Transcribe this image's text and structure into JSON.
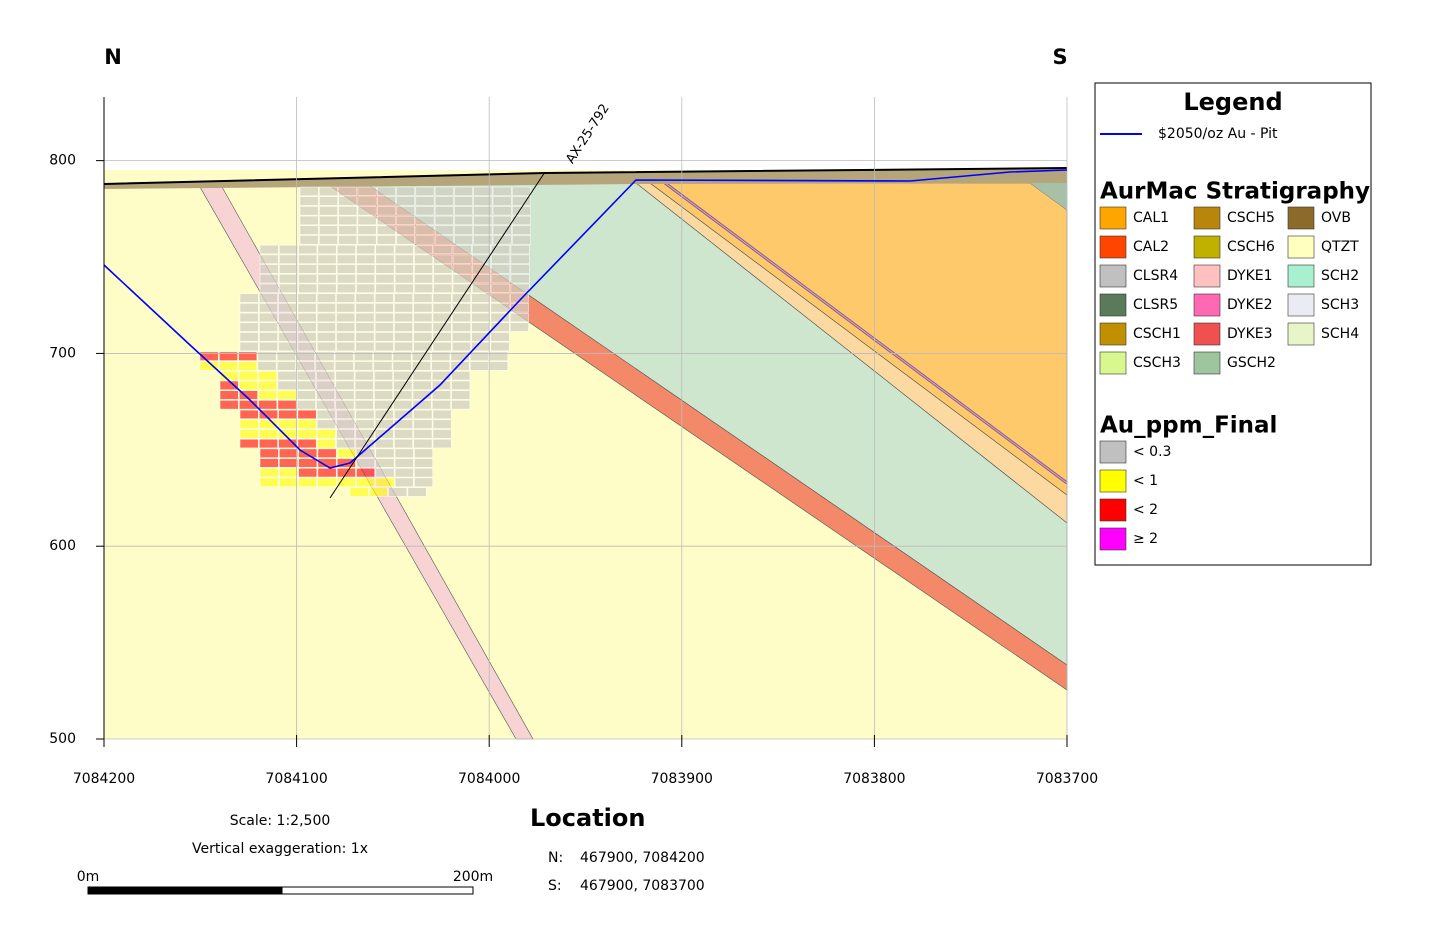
{
  "orientation": {
    "left": "N",
    "right": "S"
  },
  "section": {
    "xlim": [
      7084200,
      7083700
    ],
    "ylim": [
      500,
      833
    ],
    "xticks": [
      7084200,
      7084100,
      7084000,
      7083900,
      7083800,
      7083700
    ],
    "yticks": [
      500,
      600,
      700,
      800
    ],
    "grid": true,
    "drillhole": "AX-25-792"
  },
  "legend": {
    "title": "Legend",
    "pit": {
      "label": "$2050/oz Au - Pit",
      "color": "#0000ff"
    },
    "stratigraphy": {
      "title": "AurMac Stratigraphy",
      "items": [
        {
          "name": "CAL1",
          "color": "#ffa500"
        },
        {
          "name": "CAL2",
          "color": "#ff4500"
        },
        {
          "name": "CLSR4",
          "color": "#c0c0c0"
        },
        {
          "name": "CLSR5",
          "color": "#5a7a5a"
        },
        {
          "name": "CSCH1",
          "color": "#c09000"
        },
        {
          "name": "CSCH3",
          "color": "#d9f78f"
        },
        {
          "name": "CSCH5",
          "color": "#b8860b"
        },
        {
          "name": "CSCH6",
          "color": "#c0b000"
        },
        {
          "name": "DYKE1",
          "color": "#ffc0c0"
        },
        {
          "name": "DYKE2",
          "color": "#ff69b4"
        },
        {
          "name": "DYKE3",
          "color": "#f05050"
        },
        {
          "name": "GSCH2",
          "color": "#9fc59f"
        },
        {
          "name": "OVB",
          "color": "#8b6a2a"
        },
        {
          "name": "QTZT",
          "color": "#ffffc0"
        },
        {
          "name": "SCH2",
          "color": "#a8f0d0"
        },
        {
          "name": "SCH3",
          "color": "#ebebf3"
        },
        {
          "name": "SCH4",
          "color": "#e8f5c8"
        }
      ]
    },
    "grade": {
      "title": "Au_ppm_Final",
      "items": [
        {
          "name": "< 0.3",
          "color": "#c0c0c0"
        },
        {
          "name": "< 1",
          "color": "#ffff00"
        },
        {
          "name": "< 2",
          "color": "#ff0000"
        },
        {
          "name": "≥ 2",
          "color": "#ff00ff"
        }
      ]
    }
  },
  "scale": {
    "text": "Scale: 1:2,500",
    "exaggeration": "Vertical exaggeration: 1x",
    "bar_start": "0m",
    "bar_end": "200m"
  },
  "location": {
    "title": "Location",
    "points": [
      {
        "label": "N:",
        "coords": "467900, 7084200"
      },
      {
        "label": "S:",
        "coords": "467900, 7083700"
      }
    ]
  }
}
